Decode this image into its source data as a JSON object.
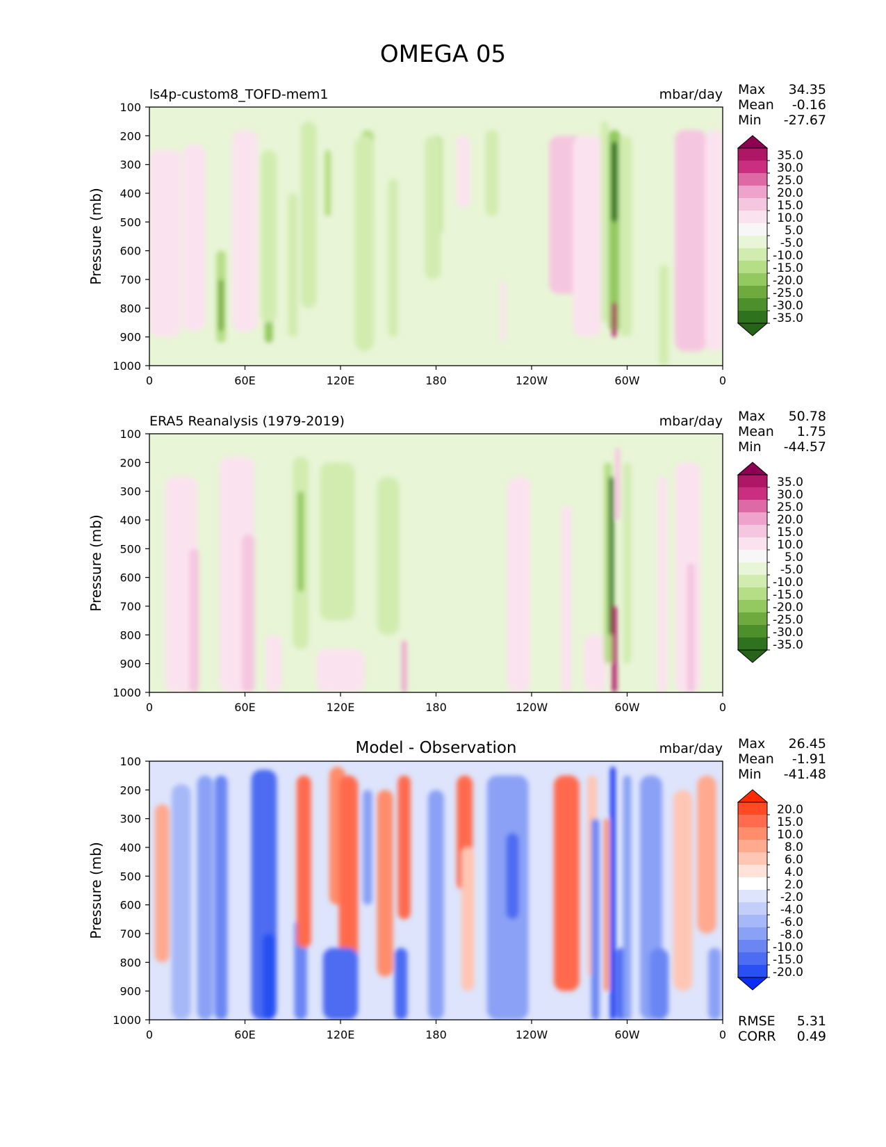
{
  "figure": {
    "title": "OMEGA 05"
  },
  "chart_data": [
    {
      "type": "heatmap",
      "title": "",
      "left_title": "ls4p-custom8_TOFD-mem1",
      "units": "mbar/day",
      "ylabel": "Pressure (mb)",
      "xlabel": "",
      "x_tick_labels": [
        "0",
        "60E",
        "120E",
        "180",
        "120W",
        "60W",
        "0"
      ],
      "x_tick_positions_deg": [
        0,
        60,
        120,
        180,
        240,
        300,
        360
      ],
      "y_tick_labels": [
        "100",
        "200",
        "300",
        "400",
        "500",
        "600",
        "700",
        "800",
        "900",
        "1000"
      ],
      "y_tick_values": [
        100,
        200,
        300,
        400,
        500,
        600,
        700,
        800,
        900,
        1000
      ],
      "ylim": [
        1000,
        100
      ],
      "xlim": [
        0,
        360
      ],
      "stats": {
        "max": "34.35",
        "mean": "-0.16",
        "min": "-27.67"
      },
      "stat_labels": [
        "Max",
        "Mean",
        "Min"
      ],
      "colorbar": {
        "labels": [
          "35.0",
          "30.0",
          "25.0",
          "20.0",
          "15.0",
          "10.0",
          "5.0",
          "-5.0",
          "-10.0",
          "-15.0",
          "-20.0",
          "-25.0",
          "-30.0",
          "-35.0"
        ],
        "colors": [
          "#8e0152",
          "#ae1766",
          "#c92e80",
          "#dd6aa5",
          "#eea3cd",
          "#f5c6e0",
          "#fae3ef",
          "#f7f7f7",
          "#e8f5d6",
          "#d2ecb0",
          "#b6de87",
          "#93c95f",
          "#6faa3e",
          "#4d8f2a",
          "#2f721d",
          "#276419"
        ]
      },
      "features": [
        {
          "lon": 10,
          "p0": 250,
          "p1": 900,
          "w": 20,
          "v": 6
        },
        {
          "lon": 28,
          "p0": 230,
          "p1": 880,
          "w": 14,
          "v": 6
        },
        {
          "lon": 45,
          "p0": 600,
          "p1": 920,
          "w": 6,
          "v": -14
        },
        {
          "lon": 45,
          "p0": 700,
          "p1": 880,
          "w": 3,
          "v": -24
        },
        {
          "lon": 60,
          "p0": 180,
          "p1": 880,
          "w": 16,
          "v": 8
        },
        {
          "lon": 75,
          "p0": 450,
          "p1": 920,
          "w": 5,
          "v": -16
        },
        {
          "lon": 75,
          "p0": 250,
          "p1": 850,
          "w": 10,
          "v": -7
        },
        {
          "lon": 90,
          "p0": 400,
          "p1": 900,
          "w": 6,
          "v": -6
        },
        {
          "lon": 100,
          "p0": 150,
          "p1": 800,
          "w": 10,
          "v": -6
        },
        {
          "lon": 112,
          "p0": 250,
          "p1": 480,
          "w": 4,
          "v": -12
        },
        {
          "lon": 137,
          "p0": 180,
          "p1": 480,
          "w": 8,
          "v": -12
        },
        {
          "lon": 137,
          "p0": 250,
          "p1": 400,
          "w": 3,
          "v": -22
        },
        {
          "lon": 135,
          "p0": 200,
          "p1": 950,
          "w": 12,
          "v": -6
        },
        {
          "lon": 153,
          "p0": 350,
          "p1": 900,
          "w": 6,
          "v": -6
        },
        {
          "lon": 180,
          "p0": 200,
          "p1": 550,
          "w": 8,
          "v": -12
        },
        {
          "lon": 178,
          "p0": 200,
          "p1": 700,
          "w": 10,
          "v": -6
        },
        {
          "lon": 197,
          "p0": 200,
          "p1": 450,
          "w": 8,
          "v": 7
        },
        {
          "lon": 215,
          "p0": 180,
          "p1": 480,
          "w": 8,
          "v": -7
        },
        {
          "lon": 222,
          "p0": 700,
          "p1": 920,
          "w": 3,
          "v": 8
        },
        {
          "lon": 262,
          "p0": 200,
          "p1": 750,
          "w": 22,
          "v": 12
        },
        {
          "lon": 275,
          "p0": 200,
          "p1": 900,
          "w": 18,
          "v": 7
        },
        {
          "lon": 286,
          "p0": 150,
          "p1": 850,
          "w": 5,
          "v": -8
        },
        {
          "lon": 292,
          "p0": 180,
          "p1": 880,
          "w": 7,
          "v": -18
        },
        {
          "lon": 292,
          "p0": 220,
          "p1": 500,
          "w": 4,
          "v": -30
        },
        {
          "lon": 292,
          "p0": 780,
          "p1": 900,
          "w": 3,
          "v": 32
        },
        {
          "lon": 299,
          "p0": 200,
          "p1": 900,
          "w": 8,
          "v": -8
        },
        {
          "lon": 323,
          "p0": 650,
          "p1": 1000,
          "w": 6,
          "v": -8
        },
        {
          "lon": 340,
          "p0": 180,
          "p1": 950,
          "w": 20,
          "v": 14
        },
        {
          "lon": 355,
          "p0": 180,
          "p1": 950,
          "w": 12,
          "v": 7
        }
      ]
    },
    {
      "type": "heatmap",
      "title": "",
      "left_title": "ERA5 Reanalysis (1979-2019)",
      "units": "mbar/day",
      "ylabel": "Pressure (mb)",
      "xlabel": "",
      "x_tick_labels": [
        "0",
        "60E",
        "120E",
        "180",
        "120W",
        "60W",
        "0"
      ],
      "x_tick_positions_deg": [
        0,
        60,
        120,
        180,
        240,
        300,
        360
      ],
      "y_tick_labels": [
        "100",
        "200",
        "300",
        "400",
        "500",
        "600",
        "700",
        "800",
        "900",
        "1000"
      ],
      "y_tick_values": [
        100,
        200,
        300,
        400,
        500,
        600,
        700,
        800,
        900,
        1000
      ],
      "ylim": [
        1000,
        100
      ],
      "xlim": [
        0,
        360
      ],
      "stats": {
        "max": "50.78",
        "mean": "1.75",
        "min": "-44.57"
      },
      "stat_labels": [
        "Max",
        "Mean",
        "Min"
      ],
      "colorbar": {
        "labels": [
          "35.0",
          "30.0",
          "25.0",
          "20.0",
          "15.0",
          "10.0",
          "5.0",
          "-5.0",
          "-10.0",
          "-15.0",
          "-20.0",
          "-25.0",
          "-30.0",
          "-35.0"
        ],
        "colors": [
          "#8e0152",
          "#ae1766",
          "#c92e80",
          "#dd6aa5",
          "#eea3cd",
          "#f5c6e0",
          "#fae3ef",
          "#f7f7f7",
          "#e8f5d6",
          "#d2ecb0",
          "#b6de87",
          "#93c95f",
          "#6faa3e",
          "#4d8f2a",
          "#2f721d",
          "#276419"
        ]
      },
      "features": [
        {
          "lon": 20,
          "p0": 250,
          "p1": 1000,
          "w": 20,
          "v": 7
        },
        {
          "lon": 28,
          "p0": 500,
          "p1": 1000,
          "w": 6,
          "v": 14
        },
        {
          "lon": 55,
          "p0": 180,
          "p1": 1000,
          "w": 22,
          "v": 9
        },
        {
          "lon": 62,
          "p0": 450,
          "p1": 1000,
          "w": 8,
          "v": 14
        },
        {
          "lon": 78,
          "p0": 800,
          "p1": 1000,
          "w": 10,
          "v": 9
        },
        {
          "lon": 95,
          "p0": 180,
          "p1": 850,
          "w": 10,
          "v": -8
        },
        {
          "lon": 95,
          "p0": 300,
          "p1": 650,
          "w": 4,
          "v": -16
        },
        {
          "lon": 118,
          "p0": 200,
          "p1": 750,
          "w": 22,
          "v": -6
        },
        {
          "lon": 150,
          "p0": 250,
          "p1": 800,
          "w": 14,
          "v": -7
        },
        {
          "lon": 160,
          "p0": 820,
          "p1": 1000,
          "w": 3,
          "v": 17
        },
        {
          "lon": 120,
          "p0": 850,
          "p1": 1000,
          "w": 30,
          "v": 7
        },
        {
          "lon": 232,
          "p0": 250,
          "p1": 1000,
          "w": 14,
          "v": 7
        },
        {
          "lon": 262,
          "p0": 350,
          "p1": 1000,
          "w": 6,
          "v": 6
        },
        {
          "lon": 280,
          "p0": 800,
          "p1": 1000,
          "w": 14,
          "v": 7
        },
        {
          "lon": 288,
          "p0": 200,
          "p1": 900,
          "w": 5,
          "v": -12
        },
        {
          "lon": 290,
          "p0": 250,
          "p1": 800,
          "w": 3,
          "v": -30
        },
        {
          "lon": 292,
          "p0": 700,
          "p1": 1000,
          "w": 3,
          "v": 34
        },
        {
          "lon": 294,
          "p0": 150,
          "p1": 400,
          "w": 3,
          "v": 14
        },
        {
          "lon": 300,
          "p0": 200,
          "p1": 900,
          "w": 5,
          "v": -8
        },
        {
          "lon": 322,
          "p0": 250,
          "p1": 1000,
          "w": 6,
          "v": 7
        },
        {
          "lon": 338,
          "p0": 200,
          "p1": 1000,
          "w": 16,
          "v": 9
        },
        {
          "lon": 340,
          "p0": 550,
          "p1": 1000,
          "w": 5,
          "v": 14
        }
      ]
    },
    {
      "type": "heatmap",
      "title": "Model - Observation",
      "left_title": "",
      "units": "mbar/day",
      "ylabel": "Pressure (mb)",
      "xlabel": "",
      "x_tick_labels": [
        "0",
        "60E",
        "120E",
        "180",
        "120W",
        "60W",
        "0"
      ],
      "x_tick_positions_deg": [
        0,
        60,
        120,
        180,
        240,
        300,
        360
      ],
      "y_tick_labels": [
        "100",
        "200",
        "300",
        "400",
        "500",
        "600",
        "700",
        "800",
        "900",
        "1000"
      ],
      "y_tick_values": [
        100,
        200,
        300,
        400,
        500,
        600,
        700,
        800,
        900,
        1000
      ],
      "ylim": [
        1000,
        100
      ],
      "xlim": [
        0,
        360
      ],
      "stats": {
        "max": "26.45",
        "mean": "-1.91",
        "min": "-41.48"
      },
      "stat_labels": [
        "Max",
        "Mean",
        "Min"
      ],
      "extra_stats": [
        {
          "label": "RMSE",
          "value": "5.31"
        },
        {
          "label": "CORR",
          "value": "0.49"
        }
      ],
      "colorbar": {
        "labels": [
          "20.0",
          "15.0",
          "10.0",
          "8.0",
          "6.0",
          "4.0",
          "2.0",
          "-2.0",
          "-4.0",
          "-6.0",
          "-8.0",
          "-10.0",
          "-15.0",
          "-20.0"
        ],
        "colors": [
          "#ff2a00",
          "#ff4a24",
          "#ff6b4d",
          "#ff8c6b",
          "#ffa98f",
          "#ffc6b4",
          "#ffe3d8",
          "#ffffff",
          "#dde4fb",
          "#c3cff9",
          "#a6b8f7",
          "#8aa1f5",
          "#6b86f3",
          "#4d6cf2",
          "#2850f2",
          "#0a2cf5"
        ]
      },
      "features": [
        {
          "lon": 8,
          "p0": 250,
          "p1": 800,
          "w": 9,
          "v": 6
        },
        {
          "lon": 20,
          "p0": 180,
          "p1": 1000,
          "w": 12,
          "v": -4
        },
        {
          "lon": 35,
          "p0": 150,
          "p1": 1000,
          "w": 10,
          "v": -6
        },
        {
          "lon": 45,
          "p0": 150,
          "p1": 1000,
          "w": 8,
          "v": -9
        },
        {
          "lon": 72,
          "p0": 130,
          "p1": 1000,
          "w": 16,
          "v": -10
        },
        {
          "lon": 75,
          "p0": 700,
          "p1": 1000,
          "w": 8,
          "v": -18
        },
        {
          "lon": 95,
          "p0": 650,
          "p1": 1000,
          "w": 8,
          "v": -9
        },
        {
          "lon": 97,
          "p0": 150,
          "p1": 750,
          "w": 9,
          "v": 14
        },
        {
          "lon": 118,
          "p0": 120,
          "p1": 600,
          "w": 10,
          "v": 8
        },
        {
          "lon": 125,
          "p0": 150,
          "p1": 800,
          "w": 12,
          "v": 12
        },
        {
          "lon": 137,
          "p0": 200,
          "p1": 600,
          "w": 6,
          "v": -7
        },
        {
          "lon": 120,
          "p0": 750,
          "p1": 1000,
          "w": 22,
          "v": -10
        },
        {
          "lon": 148,
          "p0": 200,
          "p1": 850,
          "w": 10,
          "v": 8
        },
        {
          "lon": 160,
          "p0": 150,
          "p1": 650,
          "w": 8,
          "v": 12
        },
        {
          "lon": 158,
          "p0": 750,
          "p1": 1000,
          "w": 8,
          "v": -10
        },
        {
          "lon": 180,
          "p0": 200,
          "p1": 1000,
          "w": 10,
          "v": -7
        },
        {
          "lon": 198,
          "p0": 150,
          "p1": 550,
          "w": 10,
          "v": 12
        },
        {
          "lon": 200,
          "p0": 400,
          "p1": 900,
          "w": 8,
          "v": 4
        },
        {
          "lon": 225,
          "p0": 150,
          "p1": 1000,
          "w": 26,
          "v": -7
        },
        {
          "lon": 228,
          "p0": 350,
          "p1": 650,
          "w": 8,
          "v": -10
        },
        {
          "lon": 262,
          "p0": 150,
          "p1": 900,
          "w": 16,
          "v": 14
        },
        {
          "lon": 278,
          "p0": 150,
          "p1": 850,
          "w": 6,
          "v": 5
        },
        {
          "lon": 280,
          "p0": 300,
          "p1": 1000,
          "w": 5,
          "v": -8
        },
        {
          "lon": 287,
          "p0": 300,
          "p1": 900,
          "w": 3,
          "v": 9
        },
        {
          "lon": 291,
          "p0": 120,
          "p1": 1000,
          "w": 3,
          "v": -22
        },
        {
          "lon": 296,
          "p0": 750,
          "p1": 1000,
          "w": 6,
          "v": -14
        },
        {
          "lon": 300,
          "p0": 150,
          "p1": 1000,
          "w": 5,
          "v": -7
        },
        {
          "lon": 315,
          "p0": 150,
          "p1": 1000,
          "w": 14,
          "v": -6
        },
        {
          "lon": 320,
          "p0": 750,
          "p1": 1000,
          "w": 12,
          "v": -9
        },
        {
          "lon": 335,
          "p0": 200,
          "p1": 900,
          "w": 12,
          "v": 4
        },
        {
          "lon": 350,
          "p0": 150,
          "p1": 700,
          "w": 12,
          "v": 6
        },
        {
          "lon": 355,
          "p0": 750,
          "p1": 1000,
          "w": 8,
          "v": -6
        }
      ]
    }
  ]
}
